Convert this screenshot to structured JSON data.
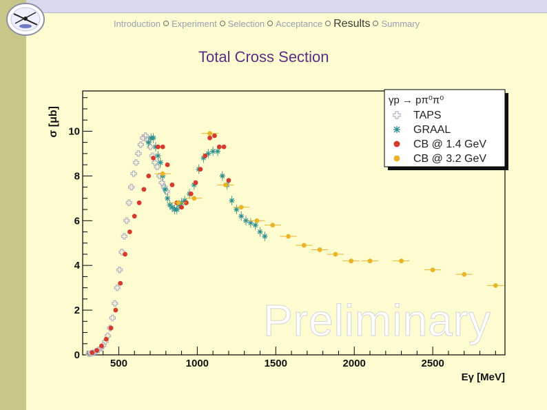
{
  "nav": {
    "items": [
      {
        "label": "Introduction",
        "active": false
      },
      {
        "label": "Experiment",
        "active": false
      },
      {
        "label": "Selection",
        "active": false
      },
      {
        "label": "Acceptance",
        "active": false
      },
      {
        "label": "Results",
        "active": true
      },
      {
        "label": "Summary",
        "active": false
      }
    ]
  },
  "slide_title": "Total Cross Section",
  "watermark": "Preliminary",
  "colors": {
    "background": "#fdfbd0",
    "title": "#5b2d83",
    "taps": "#b5b5c8",
    "graal": "#2f8f8f",
    "cb14": "#d63a2e",
    "cb32": "#e8b526"
  },
  "chart_data": {
    "type": "scatter",
    "title": "",
    "xlabel": "Eγ [MeV]",
    "ylabel": "σ [μb]",
    "xlim": [
      270,
      2960
    ],
    "ylim": [
      0,
      11.8
    ],
    "xticks": [
      500,
      1000,
      1500,
      2000,
      2500
    ],
    "yticks": [
      0,
      2,
      4,
      6,
      8,
      10
    ],
    "grid": false,
    "legend_position": "top-right",
    "legend_title": "γp → pπ⁰π⁰",
    "series": [
      {
        "name": "TAPS",
        "marker": "cross",
        "color": "#b5b5c8",
        "x": [
          310,
          325,
          340,
          355,
          370,
          385,
          400,
          415,
          430,
          445,
          460,
          475,
          490,
          505,
          520,
          535,
          550,
          565,
          580,
          595,
          610,
          625,
          640,
          655,
          670,
          685,
          700,
          715,
          730,
          745,
          760,
          775,
          790,
          805
        ],
        "y": [
          0.05,
          0.07,
          0.1,
          0.15,
          0.22,
          0.3,
          0.42,
          0.6,
          0.85,
          1.2,
          1.65,
          2.3,
          3.0,
          3.8,
          4.6,
          5.3,
          6.0,
          6.8,
          7.5,
          8.1,
          8.6,
          9.0,
          9.4,
          9.7,
          9.8,
          9.6,
          9.3,
          8.9,
          8.6,
          8.4,
          8.0,
          7.7,
          7.5,
          7.3
        ]
      },
      {
        "name": "GRAAL",
        "marker": "star",
        "color": "#2f8f8f",
        "x": [
          690,
          705,
          720,
          735,
          750,
          765,
          780,
          795,
          810,
          825,
          840,
          855,
          870,
          885,
          900,
          920,
          950,
          980,
          1010,
          1040,
          1070,
          1100,
          1130,
          1160,
          1190,
          1220,
          1250,
          1280,
          1310,
          1340,
          1370,
          1400,
          1430
        ],
        "y": [
          9.5,
          9.7,
          9.7,
          9.3,
          8.9,
          8.6,
          8.0,
          7.4,
          7.0,
          6.7,
          6.6,
          6.5,
          6.5,
          6.7,
          6.8,
          6.9,
          7.2,
          7.6,
          8.3,
          8.8,
          9.0,
          9.1,
          9.1,
          8.0,
          7.6,
          6.9,
          6.5,
          6.2,
          6.0,
          5.9,
          5.8,
          5.5,
          5.3
        ]
      },
      {
        "name": "CB @ 1.4 GeV",
        "marker": "circle",
        "color": "#d63a2e",
        "x": [
          330,
          360,
          390,
          420,
          450,
          480,
          510,
          540,
          570,
          600,
          630,
          660,
          690,
          720,
          750,
          780,
          810,
          840,
          870,
          900,
          930,
          960,
          990,
          1020,
          1050,
          1080,
          1110,
          1140,
          1170,
          1200
        ],
        "y": [
          0.1,
          0.2,
          0.4,
          0.7,
          1.2,
          2.0,
          3.2,
          4.5,
          5.5,
          6.2,
          6.8,
          7.4,
          8.0,
          8.8,
          9.3,
          9.3,
          8.5,
          7.6,
          6.8,
          6.6,
          6.8,
          7.2,
          7.7,
          8.3,
          8.9,
          9.7,
          9.8,
          9.3,
          9.3,
          7.8
        ]
      },
      {
        "name": "CB @ 3.2 GeV",
        "marker": "circle",
        "color": "#e8b526",
        "x": [
          780,
          880,
          980,
          1080,
          1180,
          1280,
          1380,
          1480,
          1580,
          1680,
          1780,
          1880,
          1980,
          2100,
          2300,
          2500,
          2700,
          2900
        ],
        "y": [
          8.1,
          6.8,
          7.0,
          9.9,
          7.6,
          6.6,
          6.0,
          5.8,
          5.3,
          4.9,
          4.7,
          4.5,
          4.2,
          4.2,
          4.2,
          3.8,
          3.6,
          3.1
        ]
      }
    ]
  }
}
